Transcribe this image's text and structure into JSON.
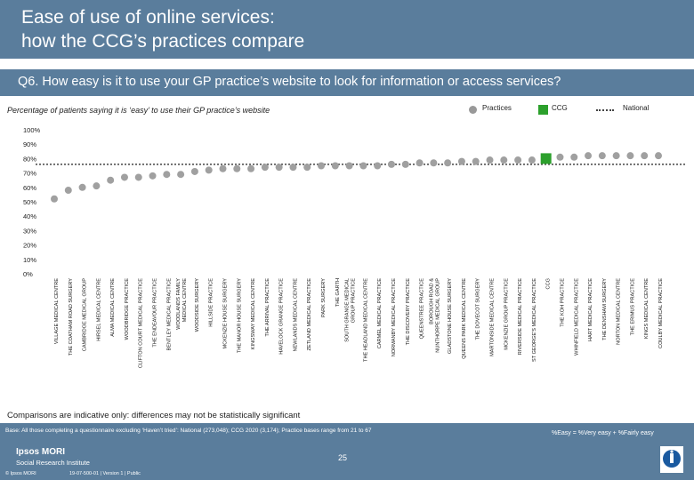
{
  "header": {
    "title_line1": "Ease of use of online services:",
    "title_line2": "how the CCG’s practices compare"
  },
  "question": "Q6. How easy is it to use your GP practice’s website to look for information or access services?",
  "subtitle": "Percentage of patients saying it is ‘easy’ to use their GP practice’s website",
  "legend": {
    "practices": "Practices",
    "ccg": "CCG",
    "national": "National"
  },
  "note": "Comparisons are indicative only: differences may not be statistically significant",
  "footer": {
    "base": "Base: All those completing a questionnaire excluding ‘Haven’t tried’: National (273,048); CCG 2020 (3,174); Practice bases range from 21 to 67",
    "key": "%Easy = %Very easy + %Fairly easy",
    "brand": "Ipsos MORI",
    "brand_sub": "Social Research Institute",
    "copyright": "© Ipsos MORI",
    "ref": "19-07-500-01 | Version 1 | Public",
    "page": "25"
  },
  "colors": {
    "header_bg": "#5a7d9c",
    "practice_marker": "#999999",
    "ccg_marker": "#2ca02c",
    "national_line": "#444444"
  },
  "chart_data": {
    "type": "scatter",
    "title": "Percentage of patients saying it is ‘easy’ to use their GP practice’s website",
    "ylim": [
      0,
      100
    ],
    "yticks": [
      "0%",
      "10%",
      "20%",
      "30%",
      "40%",
      "50%",
      "60%",
      "70%",
      "80%",
      "90%",
      "100%"
    ],
    "grid": false,
    "legend_position": "top-right",
    "national_value": 76,
    "categories": [
      "VILLAGE MEDICAL CENTRE",
      "THE COATHAM ROAD SURGERY",
      "CAMBRIDGE MEDICAL GROUP",
      "HIRSEL MEDICAL CENTRE",
      "ALMA MEDICAL CENTRE",
      "WOODBRIDGE PRACTICE",
      "CLIFTON COURT MEDICAL PRACTICE",
      "THE ENDEAVOUR PRACTICE",
      "BENTLEY MEDICAL PRACTICE",
      "WOODLANDS FAMILY MEDICAL CENTRE",
      "WOODSIDE SURGERY",
      "HILLSIDE PRACTICE",
      "MCKENZIE HOUSE SURGERY",
      "THE MANOR HOUSE SURGERY",
      "KINGSWAY MEDICAL CENTRE",
      "THE ARRIVAL PRACTICE",
      "HAVELOCK GRANGE PRACTICE",
      "NEWLANDS MEDICAL CENTRE",
      "ZETLAND MEDICAL PRACTICE",
      "PARK SURGERY",
      "THE GARTH",
      "SOUTH GRANGE MEDICAL GROUP PRACTICE",
      "THE HEADLAND MEDICAL CENTRE",
      "CARMEL MEDICAL PRACTICE",
      "NORMANBY MEDICAL PRACTICE",
      "THE DISCOVERY PRACTICE",
      "QUEENSTREE PRACTICE",
      "BOROUGH ROAD & NUNTHORPE MEDICAL GROUP",
      "GLADSTONE HOUSE SURGERY",
      "QUEENS PARK MEDICAL CENTRE",
      "THE DOVECOT SURGERY",
      "MARTONSIDE MEDICAL CENTRE",
      "MCKENZIE GROUP PRACTICE",
      "RIVERSIDE MEDICAL PRACTICE",
      "ST GEORGE'S MEDICAL PRACTICE",
      "CCG",
      "THE KOH PRACTICE",
      "WHINFIELD MEDICAL PRACTICE",
      "HART MEDICAL PRACTICE",
      "THE DENSHAM SURGERY",
      "NORTON MEDICAL CENTRE",
      "THE ERIMUS PRACTICE",
      "KINGS MEDICAL CENTRE",
      "COULBY MEDICAL PRACTICE"
    ],
    "values": [
      52,
      58,
      60,
      61,
      65,
      67,
      67,
      68,
      69,
      69,
      71,
      72,
      73,
      73,
      73,
      74,
      74,
      74,
      74,
      75,
      75,
      75,
      75,
      75,
      76,
      76,
      77,
      77,
      77,
      78,
      78,
      79,
      79,
      79,
      79,
      80,
      81,
      81,
      82,
      82,
      82,
      82,
      82,
      82
    ],
    "ccg_index": 35
  }
}
